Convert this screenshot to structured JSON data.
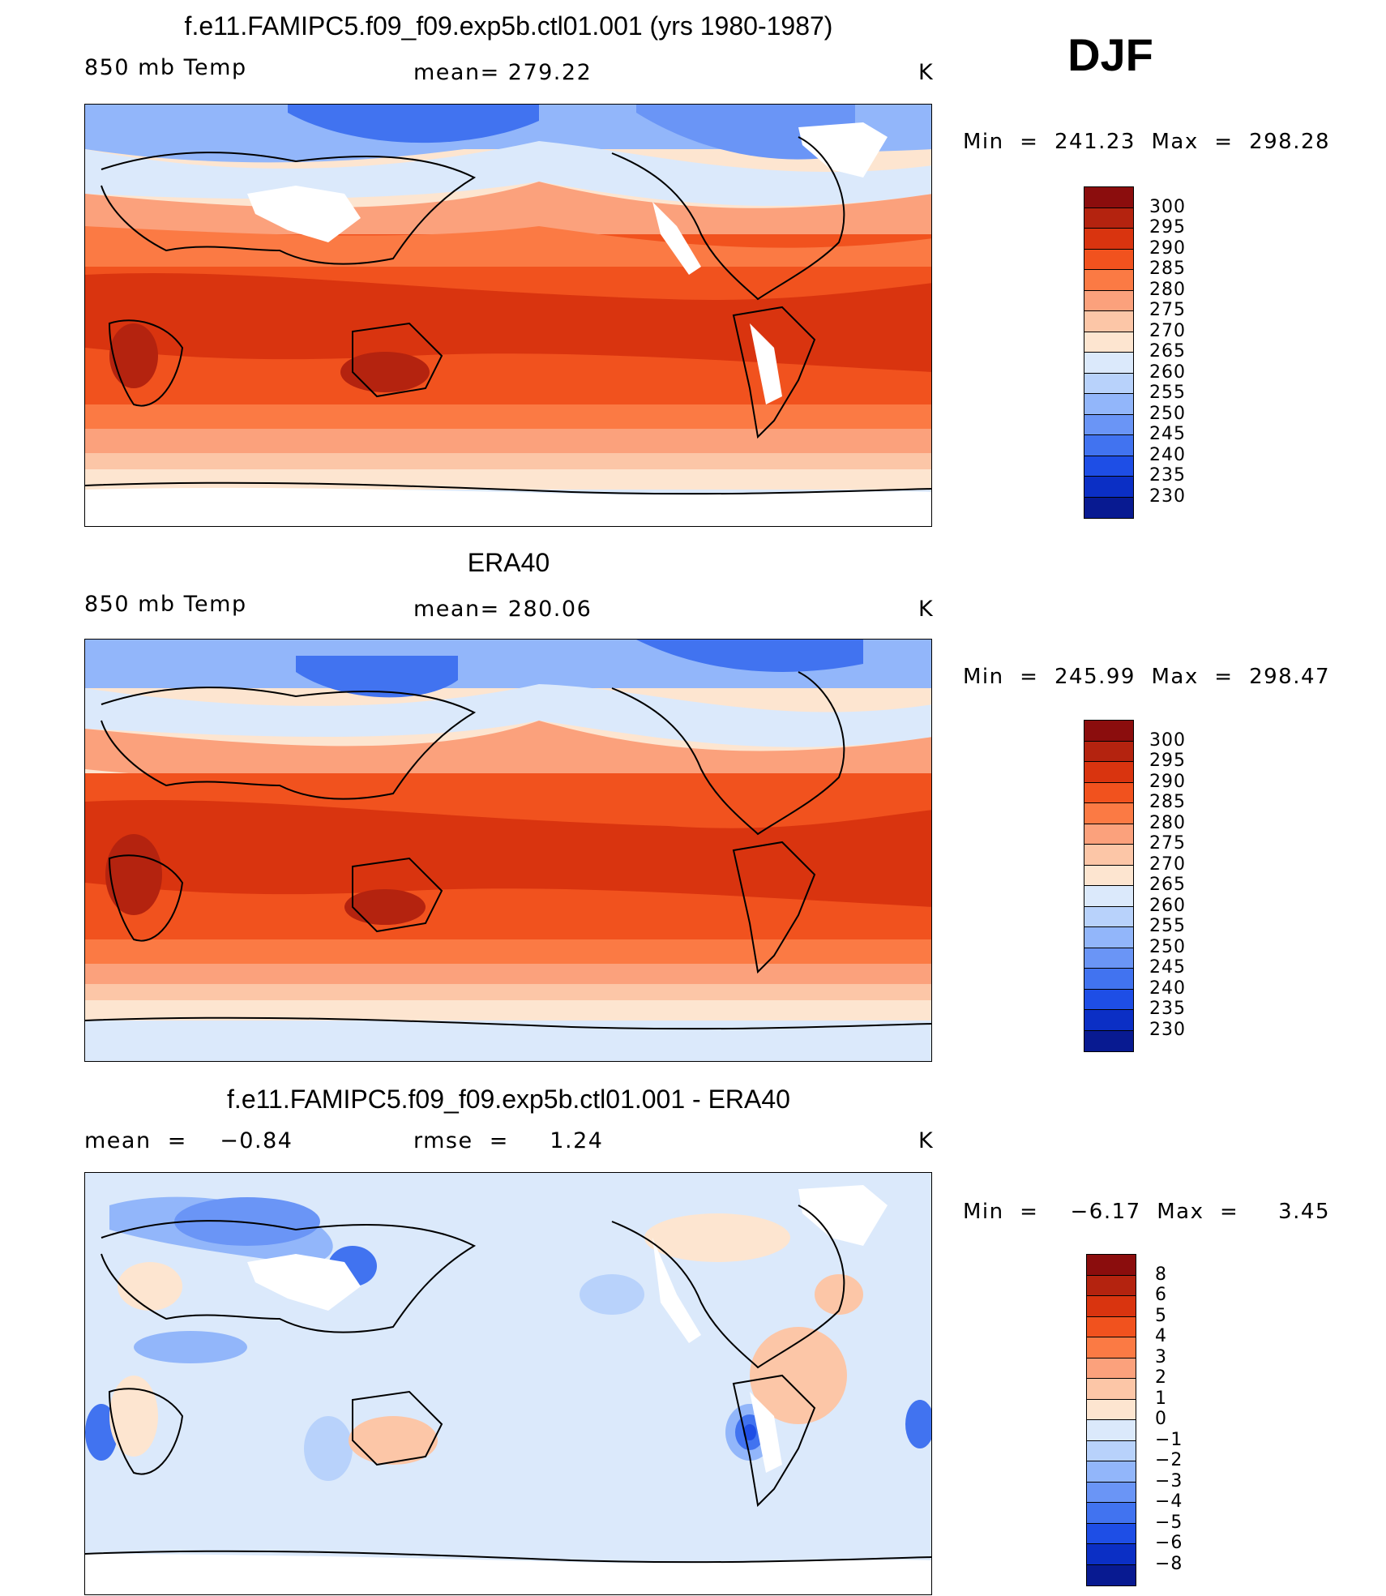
{
  "season": "DJF",
  "panels": [
    {
      "id": "model",
      "title": "f.e11.FAMIPC5.f09_f09.exp5b.ctl01.001 (yrs 1980-1987)",
      "left_label": "850 mb Temp",
      "center_label": "mean= 279.22",
      "units": "K",
      "minmax": "Min  =  241.23  Max  =  298.28",
      "colorbar": {
        "colors": [
          "#8b0d0d",
          "#b4230f",
          "#d9340f",
          "#f1521e",
          "#fb7a44",
          "#fba17c",
          "#fcc6a7",
          "#fde5d0",
          "#dbe9fb",
          "#b8d2fb",
          "#92b6fa",
          "#6a95f6",
          "#4173f0",
          "#1e4ee6",
          "#0b2fc5",
          "#081a91"
        ],
        "labels": [
          "300",
          "295",
          "290",
          "285",
          "280",
          "275",
          "270",
          "265",
          "260",
          "255",
          "250",
          "245",
          "240",
          "235",
          "230"
        ]
      }
    },
    {
      "id": "obs",
      "title": "ERA40",
      "left_label": "850 mb Temp",
      "center_label": "mean= 280.06",
      "units": "K",
      "minmax": "Min  =  245.99  Max  =  298.47",
      "colorbar": {
        "colors": [
          "#8b0d0d",
          "#b4230f",
          "#d9340f",
          "#f1521e",
          "#fb7a44",
          "#fba17c",
          "#fcc6a7",
          "#fde5d0",
          "#dbe9fb",
          "#b8d2fb",
          "#92b6fa",
          "#6a95f6",
          "#4173f0",
          "#1e4ee6",
          "#0b2fc5",
          "#081a91"
        ],
        "labels": [
          "300",
          "295",
          "290",
          "285",
          "280",
          "275",
          "270",
          "265",
          "260",
          "255",
          "250",
          "245",
          "240",
          "235",
          "230"
        ]
      }
    },
    {
      "id": "diff",
      "title": "f.e11.FAMIPC5.f09_f09.exp5b.ctl01.001 - ERA40",
      "left_label": "mean  =    −0.84",
      "center_label": "rmse  =     1.24",
      "units": "K",
      "minmax": "Min  =    −6.17  Max  =     3.45",
      "colorbar": {
        "colors": [
          "#8b0d0d",
          "#b4230f",
          "#d9340f",
          "#f1521e",
          "#fb7a44",
          "#fba17c",
          "#fcc6a7",
          "#fde5d0",
          "#dbe9fb",
          "#b8d2fb",
          "#92b6fa",
          "#6a95f6",
          "#4173f0",
          "#1e4ee6",
          "#0b2fc5",
          "#081a91"
        ],
        "labels": [
          "8",
          "6",
          "5",
          "4",
          "3",
          "2",
          "1",
          "0",
          "−1",
          "−2",
          "−3",
          "−4",
          "−5",
          "−6",
          "−8"
        ]
      }
    }
  ],
  "colors": {
    "land_outline": "#000000",
    "missing": "#ffffff"
  }
}
